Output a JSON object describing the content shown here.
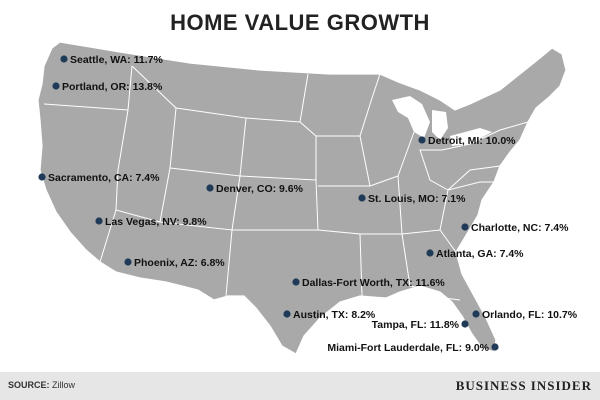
{
  "title": "HOME VALUE GROWTH",
  "source_label": "SOURCE:",
  "source_value": "Zillow",
  "brand": "BUSINESS INSIDER",
  "colors": {
    "land": "#a9a9a9",
    "border": "#ffffff",
    "dot": "#1f3b57",
    "footer": "#e6e6e6"
  },
  "cities": [
    {
      "label": "Seattle, WA: 11.7%"
    },
    {
      "label": "Portland, OR: 13.8%"
    },
    {
      "label": "Sacramento, CA: 7.4%"
    },
    {
      "label": "Las Vegas, NV: 9.8%"
    },
    {
      "label": "Phoenix, AZ: 6.8%"
    },
    {
      "label": "Denver, CO: 9.6%"
    },
    {
      "label": "Dallas-Fort Worth, TX: 11.6%"
    },
    {
      "label": "Austin, TX: 8.2%"
    },
    {
      "label": "St. Louis, MO: 7.1%"
    },
    {
      "label": "Detroit, MI: 10.0%"
    },
    {
      "label": "Charlotte, NC: 7.4%"
    },
    {
      "label": "Atlanta, GA: 7.4%"
    },
    {
      "label": "Orlando, FL: 10.7%"
    },
    {
      "label": "Tampa, FL: 11.8%"
    },
    {
      "label": "Miami-Fort Lauderdale, FL: 9.0%"
    }
  ]
}
